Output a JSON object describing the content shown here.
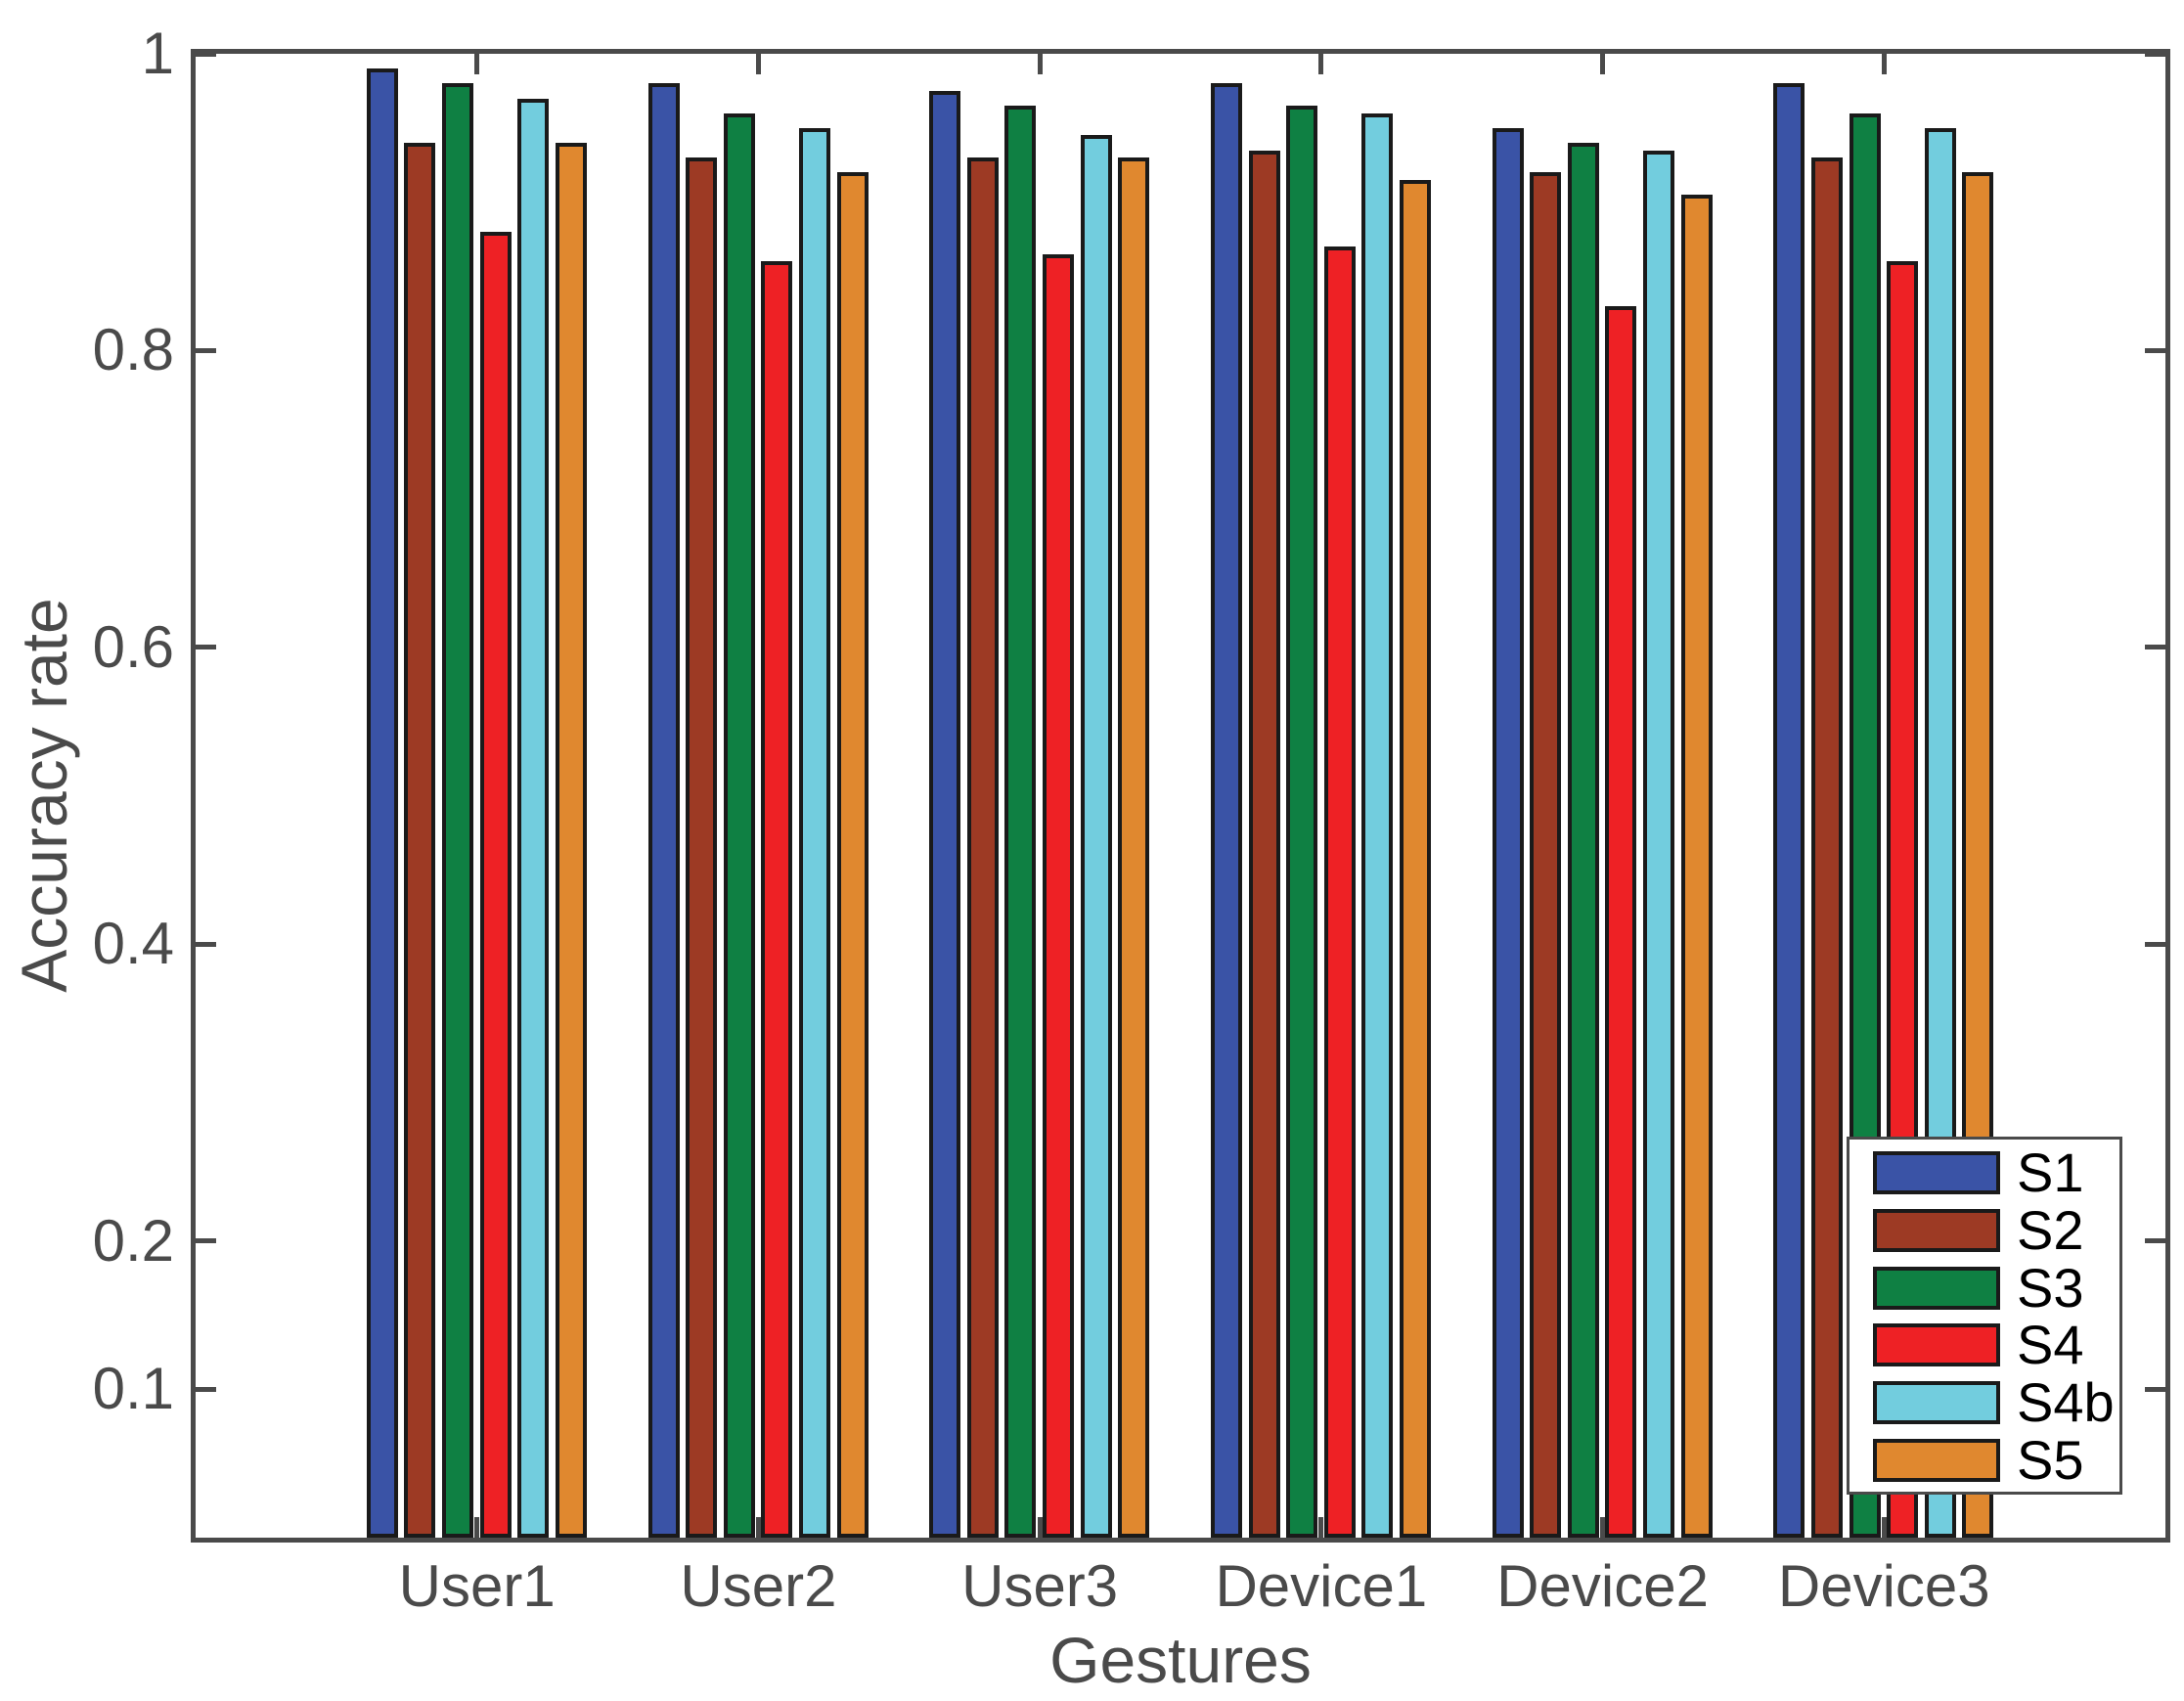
{
  "chart_data": {
    "type": "bar",
    "title": "",
    "xlabel": "Gestures",
    "ylabel": "Accuracy rate",
    "categories": [
      "User1",
      "User2",
      "User3",
      "Device1",
      "Device2",
      "Device3"
    ],
    "series": [
      {
        "name": "S1",
        "color": "#3A53A6",
        "values": [
          0.99,
          0.98,
          0.975,
          0.98,
          0.95,
          0.98
        ]
      },
      {
        "name": "S2",
        "color": "#9D3A24",
        "values": [
          0.94,
          0.93,
          0.93,
          0.935,
          0.92,
          0.93
        ]
      },
      {
        "name": "S3",
        "color": "#0F8043",
        "values": [
          0.98,
          0.96,
          0.965,
          0.965,
          0.94,
          0.96
        ]
      },
      {
        "name": "S4",
        "color": "#EE2125",
        "values": [
          0.88,
          0.86,
          0.865,
          0.87,
          0.83,
          0.86
        ]
      },
      {
        "name": "S4b",
        "color": "#72CDDE",
        "values": [
          0.97,
          0.95,
          0.945,
          0.96,
          0.935,
          0.95
        ]
      },
      {
        "name": "S5",
        "color": "#E0882F",
        "values": [
          0.94,
          0.92,
          0.93,
          0.915,
          0.905,
          0.92
        ]
      }
    ],
    "y_tick_labels": [
      "1",
      "0.8",
      "0.6",
      "0.4",
      "0.2",
      "0.1"
    ],
    "y_tick_values": [
      1,
      0.8,
      0.6,
      0.4,
      0.2,
      0.1
    ],
    "ylim": [
      0,
      1
    ],
    "xlim_units": [
      0,
      7
    ],
    "grid": false,
    "legend_position": "bottom-right",
    "legend_labels": [
      "S1",
      "S2",
      "S3",
      "S4",
      "S4b",
      "S5"
    ],
    "axis_color": "#4a4a4a",
    "bar_edge_color": "#1a1a1a",
    "tick_label_color": "#4a4a4a"
  }
}
